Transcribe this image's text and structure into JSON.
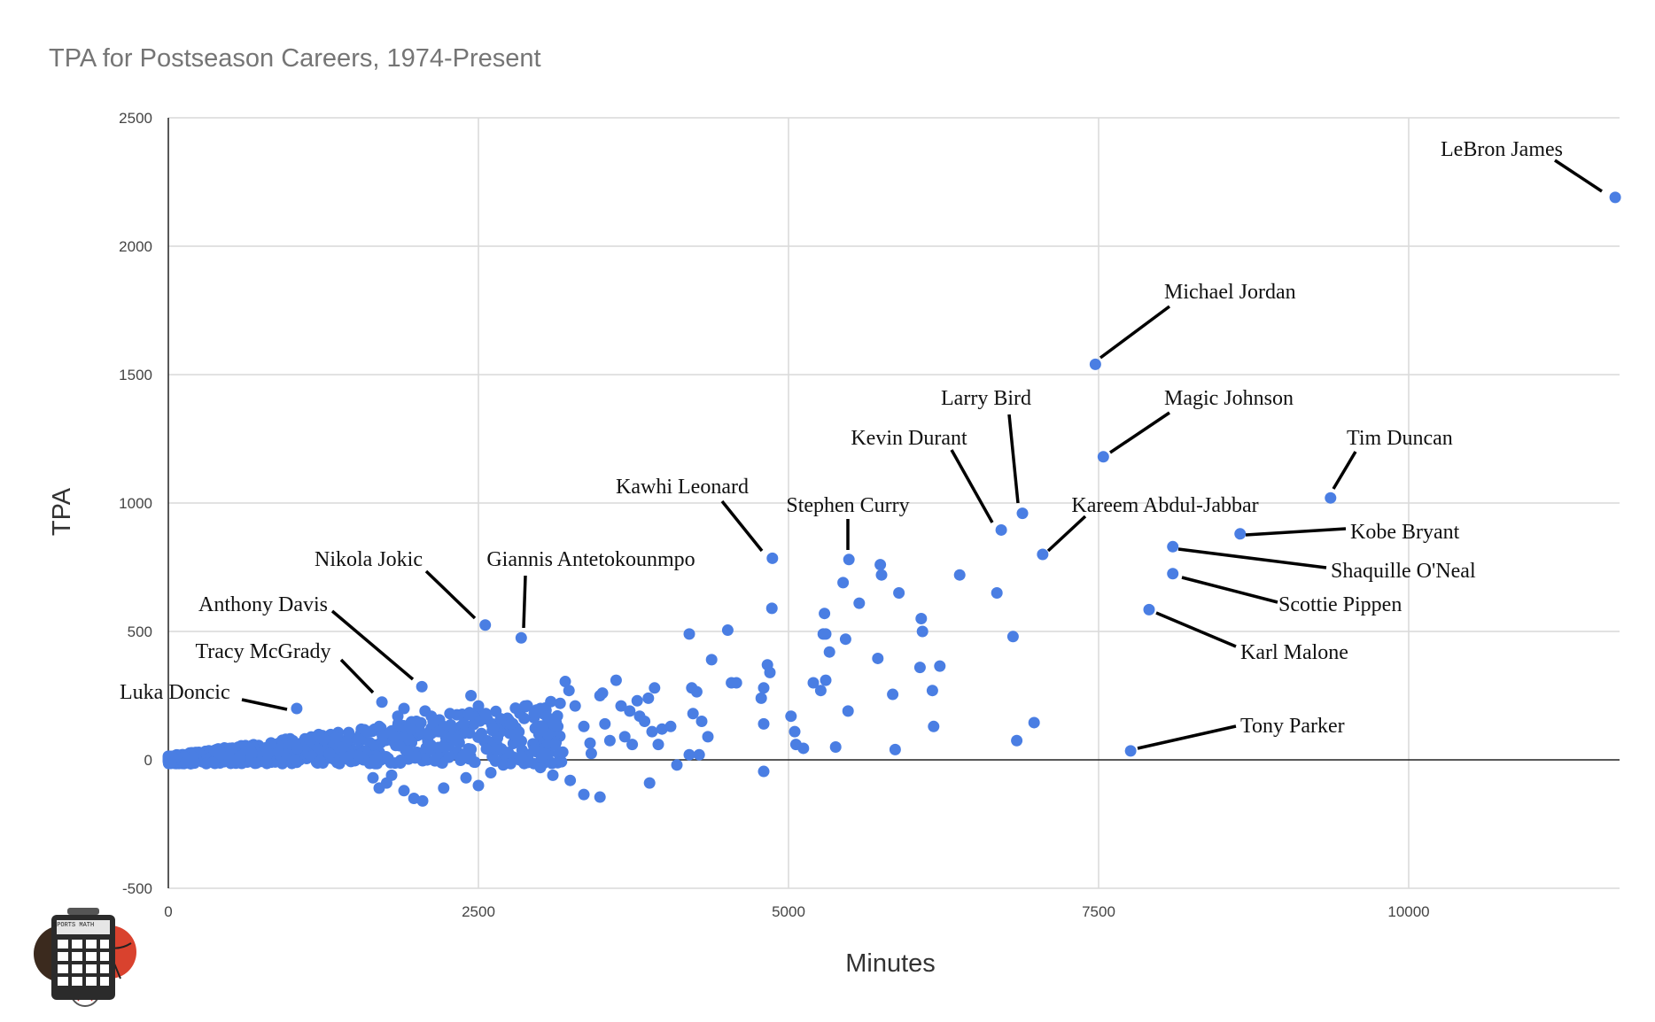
{
  "title": "TPA for Postseason Careers, 1974-Present",
  "logo": {
    "label": "SPORTS MATH",
    "icon": "calculator-sports-logo-icon"
  },
  "colors": {
    "point": "#4a7ee3",
    "grid": "#d9d9d9",
    "axis": "#222222",
    "tick_text": "#444444",
    "label_line": "#000000"
  },
  "chart_data": {
    "type": "scatter",
    "title": "TPA for Postseason Careers, 1974-Present",
    "xlabel": "Minutes",
    "ylabel": "TPA",
    "xlim": [
      0,
      11700
    ],
    "ylim": [
      -500,
      2500
    ],
    "x_ticks": [
      0,
      2500,
      5000,
      7500,
      10000
    ],
    "y_ticks": [
      -500,
      0,
      500,
      1000,
      1500,
      2000,
      2500
    ],
    "grid": true,
    "labeled_points": [
      {
        "name": "LeBron James",
        "x": 11665,
        "y": 2190
      },
      {
        "name": "Michael Jordan",
        "x": 7474,
        "y": 1540
      },
      {
        "name": "Magic Johnson",
        "x": 7538,
        "y": 1180
      },
      {
        "name": "Tim Duncan",
        "x": 9370,
        "y": 1020
      },
      {
        "name": "Larry Bird",
        "x": 6886,
        "y": 960
      },
      {
        "name": "Kevin Durant",
        "x": 6715,
        "y": 895
      },
      {
        "name": "Kobe Bryant",
        "x": 8641,
        "y": 880
      },
      {
        "name": "Kareem Abdul-Jabbar",
        "x": 7049,
        "y": 800
      },
      {
        "name": "Shaquille O'Neal",
        "x": 8098,
        "y": 830
      },
      {
        "name": "Kawhi Leonard",
        "x": 4870,
        "y": 785
      },
      {
        "name": "Stephen Curry",
        "x": 5487,
        "y": 780
      },
      {
        "name": "Scottie Pippen",
        "x": 8098,
        "y": 725
      },
      {
        "name": "Karl Malone",
        "x": 7907,
        "y": 585
      },
      {
        "name": "Giannis Antetokounmpo",
        "x": 2845,
        "y": 475
      },
      {
        "name": "Nikola Jokic",
        "x": 2555,
        "y": 525
      },
      {
        "name": "Anthony Davis",
        "x": 2044,
        "y": 285
      },
      {
        "name": "Tracy McGrady",
        "x": 1722,
        "y": 225
      },
      {
        "name": "Luka Doncic",
        "x": 1035,
        "y": 200
      },
      {
        "name": "Tony Parker",
        "x": 7758,
        "y": 35
      }
    ],
    "other_points": [
      [
        4866,
        590
      ],
      [
        4830,
        370
      ],
      [
        4850,
        340
      ],
      [
        4800,
        280
      ],
      [
        4780,
        240
      ],
      [
        4800,
        140
      ],
      [
        4800,
        -45
      ],
      [
        4200,
        490
      ],
      [
        4220,
        280
      ],
      [
        4260,
        265
      ],
      [
        4380,
        390
      ],
      [
        4510,
        505
      ],
      [
        4540,
        300
      ],
      [
        4580,
        300
      ],
      [
        4230,
        180
      ],
      [
        4300,
        150
      ],
      [
        4350,
        90
      ],
      [
        4200,
        20
      ],
      [
        4280,
        20
      ],
      [
        4100,
        -20
      ],
      [
        5020,
        170
      ],
      [
        5050,
        110
      ],
      [
        5060,
        60
      ],
      [
        5120,
        45
      ],
      [
        5200,
        300
      ],
      [
        5260,
        270
      ],
      [
        5280,
        490
      ],
      [
        5300,
        490
      ],
      [
        5300,
        310
      ],
      [
        5330,
        420
      ],
      [
        5380,
        50
      ],
      [
        5440,
        690
      ],
      [
        5460,
        470
      ],
      [
        5480,
        190
      ],
      [
        5290,
        570
      ],
      [
        5570,
        610
      ],
      [
        5740,
        760
      ],
      [
        5750,
        720
      ],
      [
        5720,
        395
      ],
      [
        5840,
        255
      ],
      [
        5860,
        40
      ],
      [
        5890,
        650
      ],
      [
        6070,
        550
      ],
      [
        6080,
        500
      ],
      [
        6060,
        360
      ],
      [
        6160,
        270
      ],
      [
        6170,
        130
      ],
      [
        6220,
        365
      ],
      [
        6380,
        720
      ],
      [
        6680,
        650
      ],
      [
        6810,
        480
      ],
      [
        6840,
        75
      ],
      [
        6980,
        145
      ],
      [
        3200,
        305
      ],
      [
        3230,
        270
      ],
      [
        3280,
        210
      ],
      [
        3350,
        130
      ],
      [
        3400,
        65
      ],
      [
        3410,
        25
      ],
      [
        3480,
        250
      ],
      [
        3500,
        260
      ],
      [
        3520,
        140
      ],
      [
        3560,
        75
      ],
      [
        3610,
        310
      ],
      [
        3650,
        210
      ],
      [
        3680,
        90
      ],
      [
        3720,
        190
      ],
      [
        3740,
        60
      ],
      [
        3780,
        230
      ],
      [
        3800,
        170
      ],
      [
        3840,
        150
      ],
      [
        3870,
        240
      ],
      [
        3900,
        110
      ],
      [
        3920,
        280
      ],
      [
        3950,
        60
      ],
      [
        3980,
        120
      ],
      [
        4050,
        130
      ],
      [
        3880,
        -90
      ],
      [
        3480,
        -145
      ],
      [
        3350,
        -135
      ],
      [
        3240,
        -80
      ],
      [
        3100,
        -60
      ],
      [
        3000,
        -30
      ],
      [
        2950,
        40
      ],
      [
        2900,
        -10
      ],
      [
        2850,
        10
      ],
      [
        2820,
        80
      ],
      [
        2950,
        180
      ],
      [
        3000,
        200
      ],
      [
        3050,
        170
      ],
      [
        3100,
        150
      ],
      [
        3140,
        130
      ],
      [
        3060,
        100
      ],
      [
        3120,
        60
      ],
      [
        3180,
        30
      ],
      [
        3020,
        120
      ],
      [
        2760,
        140
      ],
      [
        2680,
        160
      ],
      [
        2620,
        120
      ],
      [
        2560,
        180
      ],
      [
        2500,
        210
      ],
      [
        2440,
        250
      ],
      [
        2380,
        140
      ],
      [
        2320,
        80
      ],
      [
        2270,
        180
      ],
      [
        2220,
        130
      ],
      [
        2180,
        110
      ],
      [
        2120,
        170
      ],
      [
        2070,
        190
      ],
      [
        2000,
        150
      ],
      [
        1960,
        120
      ],
      [
        1940,
        80
      ],
      [
        1900,
        200
      ],
      [
        1850,
        170
      ],
      [
        1800,
        -60
      ],
      [
        1760,
        -90
      ],
      [
        1700,
        -110
      ],
      [
        1650,
        -70
      ],
      [
        1900,
        -120
      ],
      [
        1980,
        -150
      ],
      [
        2050,
        -160
      ],
      [
        2220,
        -110
      ],
      [
        2400,
        -70
      ],
      [
        2500,
        -100
      ],
      [
        2600,
        -50
      ],
      [
        2700,
        -20
      ],
      [
        1820,
        90
      ],
      [
        1700,
        130
      ],
      [
        1600,
        110
      ]
    ],
    "cluster": {
      "x_range": [
        0,
        3200
      ],
      "y_center_slope": 0.035
    }
  }
}
